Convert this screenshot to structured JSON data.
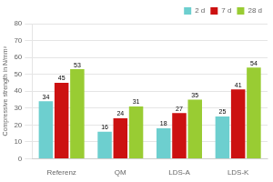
{
  "chart_data": {
    "type": "bar",
    "ylabel": "Compressive strength in N/mm²",
    "categories": [
      "Referenz",
      "QM",
      "LDS-A",
      "LDS-K"
    ],
    "series": [
      {
        "name": "2 d",
        "color": "#6DCFCF",
        "values": [
          34,
          16,
          18,
          25
        ]
      },
      {
        "name": "7 d",
        "color": "#CC1111",
        "values": [
          45,
          24,
          27,
          41
        ]
      },
      {
        "name": "28 d",
        "color": "#99CC33",
        "values": [
          53,
          31,
          35,
          54
        ]
      }
    ],
    "ylim": [
      0,
      80
    ],
    "yticks": [
      0,
      10,
      20,
      30,
      40,
      50,
      60,
      70,
      80
    ],
    "grid": true,
    "legend": "upper right",
    "data_labels": true
  }
}
